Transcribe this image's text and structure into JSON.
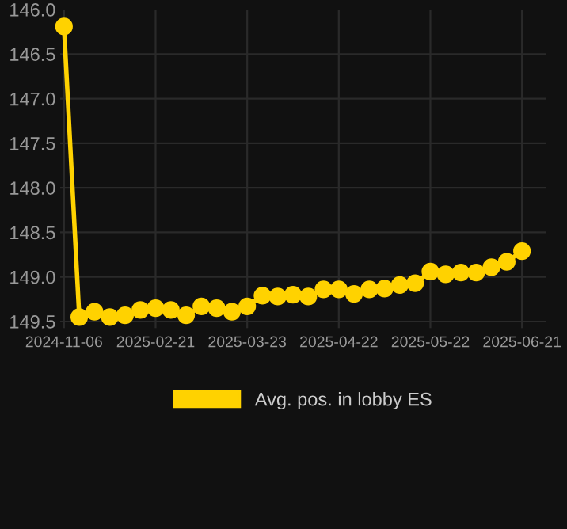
{
  "chart_data": {
    "type": "line",
    "categories": [
      "2024-11-06",
      null,
      null,
      null,
      null,
      null,
      "2025-02-21",
      null,
      null,
      null,
      null,
      null,
      "2025-03-23",
      null,
      null,
      null,
      null,
      null,
      "2025-04-22",
      null,
      null,
      null,
      null,
      null,
      "2025-05-22",
      null,
      null,
      null,
      null,
      null,
      "2025-06-21"
    ],
    "series": [
      {
        "name": "Avg. pos. in lobby ES",
        "color": "#ffd200",
        "values": [
          146.19,
          149.45,
          149.39,
          149.45,
          149.43,
          149.37,
          149.35,
          149.37,
          149.43,
          149.33,
          149.35,
          149.39,
          149.33,
          149.21,
          149.22,
          149.2,
          149.22,
          149.14,
          149.14,
          149.19,
          149.14,
          149.13,
          149.09,
          149.07,
          148.94,
          148.97,
          148.95,
          148.95,
          148.89,
          148.83,
          148.71
        ]
      }
    ],
    "ylim": [
      149.5,
      146.0
    ],
    "yticks": [
      {
        "value": 146.0,
        "label": "146.0"
      },
      {
        "value": 146.5,
        "label": "146.5"
      },
      {
        "value": 147.0,
        "label": "147.0"
      },
      {
        "value": 147.5,
        "label": "147.5"
      },
      {
        "value": 148.0,
        "label": "148.0"
      },
      {
        "value": 148.5,
        "label": "148.5"
      },
      {
        "value": 149.0,
        "label": "149.0"
      },
      {
        "value": 149.5,
        "label": "149.5"
      }
    ],
    "grid": true,
    "legend": "bottom",
    "marker": "circle",
    "line_style": "solid"
  }
}
